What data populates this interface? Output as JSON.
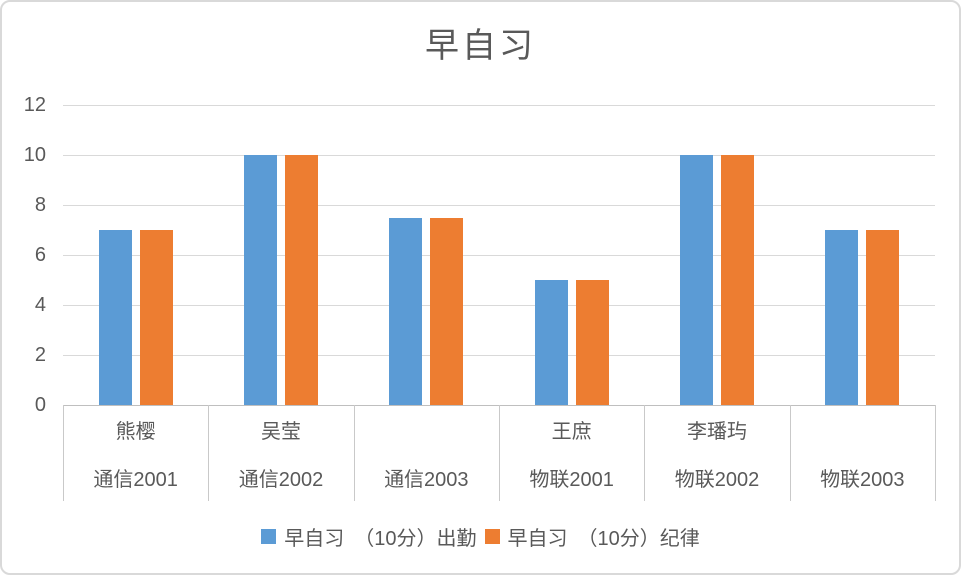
{
  "window": {
    "background": "#FFFFFF",
    "border_color": "#D9D9D9"
  },
  "chart_data": {
    "type": "bar",
    "title": "早自习",
    "categories": [
      {
        "name": "熊樱",
        "group": "通信2001"
      },
      {
        "name": "吴莹",
        "group": "通信2002"
      },
      {
        "name": "",
        "group": "通信2003"
      },
      {
        "name": "王庶",
        "group": "物联2001"
      },
      {
        "name": "李璠玙",
        "group": "物联2002"
      },
      {
        "name": "",
        "group": "物联2003"
      }
    ],
    "series": [
      {
        "name": "早自习　（10分）出勤",
        "color": "#5B9BD5",
        "values": [
          7,
          10,
          7.5,
          5,
          10,
          7
        ]
      },
      {
        "name": "早自习　（10分）纪律",
        "color": "#ED7D31",
        "values": [
          7,
          10,
          7.5,
          5,
          10,
          7
        ]
      }
    ],
    "y_axis": {
      "min": 0,
      "max": 12,
      "step": 2,
      "ticks": [
        12,
        10,
        8,
        6,
        4,
        2,
        0
      ]
    },
    "grid": true,
    "gridline_color": "#D9D9D9",
    "axis_line_color": "#BFBFBF",
    "text_color": "#595959",
    "legend_position": "bottom"
  }
}
